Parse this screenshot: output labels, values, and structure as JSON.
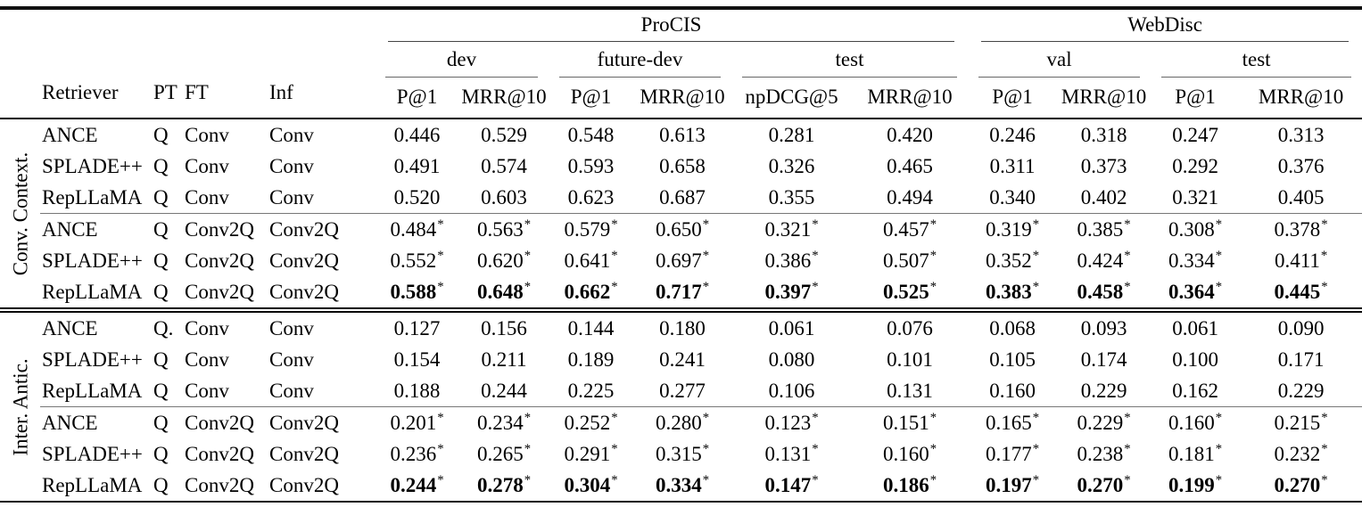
{
  "meta": {
    "background_color": "#ffffff",
    "text_color": "#000000",
    "rule_color": "#000000",
    "cmidrule_color": "#666666",
    "significance_marker": "*"
  },
  "header": {
    "retriever": "Retriever",
    "pt": "PT",
    "ft": "FT",
    "inf": "Inf",
    "top_groups": [
      {
        "label": "ProCIS"
      },
      {
        "label": "WebDisc"
      }
    ],
    "subgroups": [
      {
        "label": "dev"
      },
      {
        "label": "future-dev"
      },
      {
        "label": "test"
      },
      {
        "label": "val"
      },
      {
        "label": "test"
      }
    ],
    "metrics": [
      "P@1",
      "MRR@10",
      "P@1",
      "MRR@10",
      "npDCG@5",
      "MRR@10",
      "P@1",
      "MRR@10",
      "P@1",
      "MRR@10"
    ]
  },
  "row_groups": [
    {
      "label": "Conv. Context.",
      "rows": [
        {
          "retriever": "ANCE",
          "pt": "Q",
          "ft": "Conv",
          "inf": "Conv",
          "star": false,
          "bold": false,
          "values": [
            "0.446",
            "0.529",
            "0.548",
            "0.613",
            "0.281",
            "0.420",
            "0.246",
            "0.318",
            "0.247",
            "0.313"
          ]
        },
        {
          "retriever": "SPLADE++",
          "pt": "Q",
          "ft": "Conv",
          "inf": "Conv",
          "star": false,
          "bold": false,
          "values": [
            "0.491",
            "0.574",
            "0.593",
            "0.658",
            "0.326",
            "0.465",
            "0.311",
            "0.373",
            "0.292",
            "0.376"
          ]
        },
        {
          "retriever": "RepLLaMA",
          "pt": "Q",
          "ft": "Conv",
          "inf": "Conv",
          "star": false,
          "bold": false,
          "values": [
            "0.520",
            "0.603",
            "0.623",
            "0.687",
            "0.355",
            "0.494",
            "0.340",
            "0.402",
            "0.321",
            "0.405"
          ]
        },
        {
          "retriever": "ANCE",
          "pt": "Q",
          "ft": "Conv2Q",
          "inf": "Conv2Q",
          "star": true,
          "bold": false,
          "values": [
            "0.484",
            "0.563",
            "0.579",
            "0.650",
            "0.321",
            "0.457",
            "0.319",
            "0.385",
            "0.308",
            "0.378"
          ]
        },
        {
          "retriever": "SPLADE++",
          "pt": "Q",
          "ft": "Conv2Q",
          "inf": "Conv2Q",
          "star": true,
          "bold": false,
          "values": [
            "0.552",
            "0.620",
            "0.641",
            "0.697",
            "0.386",
            "0.507",
            "0.352",
            "0.424",
            "0.334",
            "0.411"
          ]
        },
        {
          "retriever": "RepLLaMA",
          "pt": "Q",
          "ft": "Conv2Q",
          "inf": "Conv2Q",
          "star": true,
          "bold": true,
          "values": [
            "0.588",
            "0.648",
            "0.662",
            "0.717",
            "0.397",
            "0.525",
            "0.383",
            "0.458",
            "0.364",
            "0.445"
          ]
        }
      ]
    },
    {
      "label": "Inter. Antic.",
      "rows": [
        {
          "retriever": "ANCE",
          "pt": "Q.",
          "ft": "Conv",
          "inf": "Conv",
          "star": false,
          "bold": false,
          "values": [
            "0.127",
            "0.156",
            "0.144",
            "0.180",
            "0.061",
            "0.076",
            "0.068",
            "0.093",
            "0.061",
            "0.090"
          ]
        },
        {
          "retriever": "SPLADE++",
          "pt": "Q",
          "ft": "Conv",
          "inf": "Conv",
          "star": false,
          "bold": false,
          "values": [
            "0.154",
            "0.211",
            "0.189",
            "0.241",
            "0.080",
            "0.101",
            "0.105",
            "0.174",
            "0.100",
            "0.171"
          ]
        },
        {
          "retriever": "RepLLaMA",
          "pt": "Q",
          "ft": "Conv",
          "inf": "Conv",
          "star": false,
          "bold": false,
          "values": [
            "0.188",
            "0.244",
            "0.225",
            "0.277",
            "0.106",
            "0.131",
            "0.160",
            "0.229",
            "0.162",
            "0.229"
          ]
        },
        {
          "retriever": "ANCE",
          "pt": "Q",
          "ft": "Conv2Q",
          "inf": "Conv2Q",
          "star": true,
          "bold": false,
          "values": [
            "0.201",
            "0.234",
            "0.252",
            "0.280",
            "0.123",
            "0.151",
            "0.165",
            "0.229",
            "0.160",
            "0.215"
          ]
        },
        {
          "retriever": "SPLADE++",
          "pt": "Q",
          "ft": "Conv2Q",
          "inf": "Conv2Q",
          "star": true,
          "bold": false,
          "values": [
            "0.236",
            "0.265",
            "0.291",
            "0.315",
            "0.131",
            "0.160",
            "0.177",
            "0.238",
            "0.181",
            "0.232"
          ]
        },
        {
          "retriever": "RepLLaMA",
          "pt": "Q",
          "ft": "Conv2Q",
          "inf": "Conv2Q",
          "star": true,
          "bold": true,
          "values": [
            "0.244",
            "0.278",
            "0.304",
            "0.334",
            "0.147",
            "0.186",
            "0.197",
            "0.270",
            "0.199",
            "0.270"
          ]
        }
      ]
    }
  ]
}
